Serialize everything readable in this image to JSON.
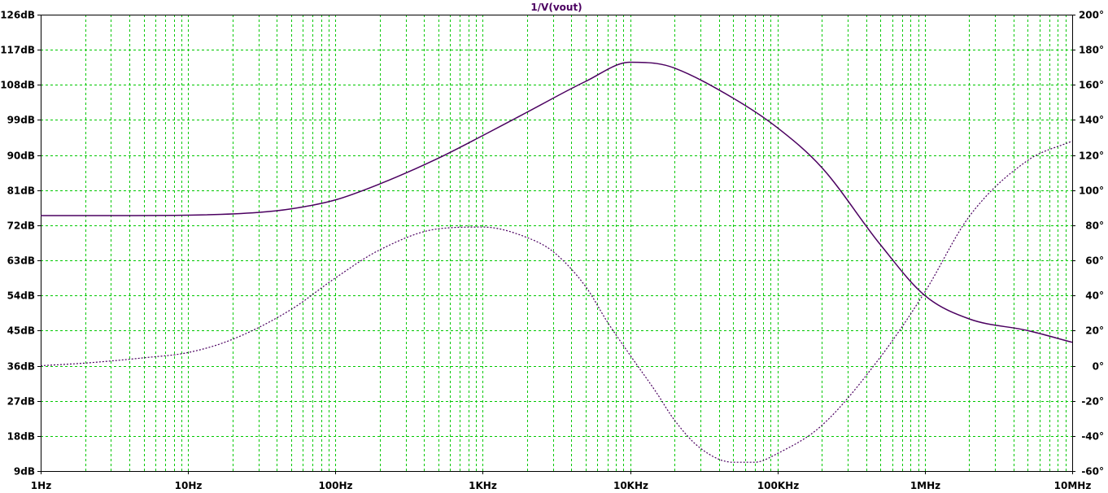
{
  "chart_data": {
    "type": "line",
    "title": "1/V(vout)",
    "x_scale": "log",
    "xlim": [
      1,
      10000000
    ],
    "x_ticks": [
      {
        "value": 1,
        "label": "1Hz"
      },
      {
        "value": 10,
        "label": "10Hz"
      },
      {
        "value": 100,
        "label": "100Hz"
      },
      {
        "value": 1000,
        "label": "1KHz"
      },
      {
        "value": 10000,
        "label": "10KHz"
      },
      {
        "value": 100000,
        "label": "100KHz"
      },
      {
        "value": 1000000,
        "label": "1MHz"
      },
      {
        "value": 10000000,
        "label": "10MHz"
      }
    ],
    "y_left": {
      "ylim": [
        9,
        126
      ],
      "ticks": [
        {
          "value": 126,
          "label": "126dB"
        },
        {
          "value": 117,
          "label": "117dB"
        },
        {
          "value": 108,
          "label": "108dB"
        },
        {
          "value": 99,
          "label": "99dB"
        },
        {
          "value": 90,
          "label": "90dB"
        },
        {
          "value": 81,
          "label": "81dB"
        },
        {
          "value": 72,
          "label": "72dB"
        },
        {
          "value": 63,
          "label": "63dB"
        },
        {
          "value": 54,
          "label": "54dB"
        },
        {
          "value": 45,
          "label": "45dB"
        },
        {
          "value": 36,
          "label": "36dB"
        },
        {
          "value": 27,
          "label": "27dB"
        },
        {
          "value": 18,
          "label": "18dB"
        },
        {
          "value": 9,
          "label": "9dB"
        }
      ]
    },
    "y_right": {
      "ylim": [
        -60,
        200
      ],
      "ticks": [
        {
          "value": 200,
          "label": "200°"
        },
        {
          "value": 180,
          "label": "180°"
        },
        {
          "value": 160,
          "label": "160°"
        },
        {
          "value": 140,
          "label": "140°"
        },
        {
          "value": 120,
          "label": "120°"
        },
        {
          "value": 100,
          "label": "100°"
        },
        {
          "value": 80,
          "label": "80°"
        },
        {
          "value": 60,
          "label": "60°"
        },
        {
          "value": 40,
          "label": "40°"
        },
        {
          "value": 20,
          "label": "20°"
        },
        {
          "value": 0,
          "label": "0°"
        },
        {
          "value": -20,
          "label": "-20°"
        },
        {
          "value": -40,
          "label": "-40°"
        },
        {
          "value": -60,
          "label": "-60°"
        }
      ]
    },
    "grid": true,
    "series": [
      {
        "axis": "left",
        "style": "solid",
        "color": "#4b0060",
        "x": [
          1,
          3,
          10,
          30,
          50,
          100,
          200,
          500,
          1000,
          2000,
          5000,
          10000,
          15000,
          20000,
          50000,
          100000,
          200000,
          500000,
          1000000,
          2000000,
          5000000,
          10000000
        ],
        "y": [
          74.5,
          74.5,
          74.6,
          75.3,
          76.2,
          78.5,
          82.6,
          89.2,
          95.0,
          101.0,
          108.9,
          113.8,
          113.5,
          112.3,
          104.6,
          97.0,
          86.8,
          67.0,
          54.0,
          48.0,
          45.0,
          42.0
        ]
      },
      {
        "axis": "right",
        "style": "dotted",
        "color": "#4b0060",
        "x": [
          1,
          2,
          5,
          10,
          20,
          50,
          100,
          200,
          500,
          1000,
          2000,
          3000,
          5000,
          7000,
          10000,
          15000,
          20000,
          30000,
          50000,
          70000,
          100000,
          200000,
          500000,
          1000000,
          2000000,
          5000000,
          10000000
        ],
        "y": [
          0,
          1.5,
          4.5,
          7.5,
          15,
          32,
          50,
          66,
          78,
          79,
          73,
          65,
          45,
          25,
          6,
          -15,
          -31,
          -47,
          -55,
          -55,
          -50,
          -34,
          5,
          42,
          85,
          117,
          128
        ]
      }
    ]
  }
}
